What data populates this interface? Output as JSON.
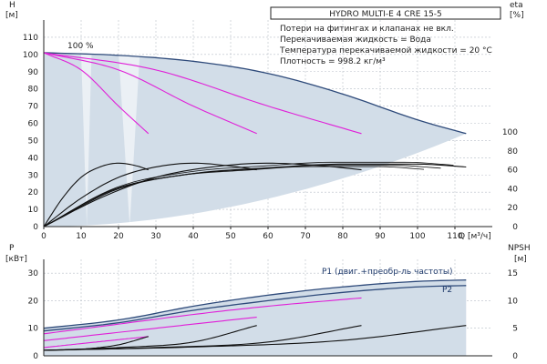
{
  "colors": {
    "envelope": "#d2dde8",
    "frame": "#1f3a6b",
    "outline": "#2e4a7a",
    "magenta": "#e020d8",
    "black": "#111111",
    "grid": "#b8bfc8"
  },
  "chart_data": [
    {
      "type": "line",
      "title": "HYDRO MULTI-E 4 CRE 15-5",
      "notes": [
        "Потери на фитингах и клапанах не вкл.",
        "Перекачиваемая жидкость = Вода",
        "Температура перекачиваемой жидкости = 20 °C",
        "Плотность = 998.2 кг/м³"
      ],
      "xlabel": "Q [м³/ч]",
      "ylabel_left": [
        "H",
        "[м]"
      ],
      "ylabel_right": [
        "eta",
        "[%]"
      ],
      "percent_label": "100 %",
      "xlim": [
        0,
        120
      ],
      "ylim_left": [
        0,
        120
      ],
      "ylim_right_eta": [
        0,
        100
      ],
      "xticks": [
        "0",
        "10",
        "20",
        "30",
        "40",
        "50",
        "60",
        "70",
        "80",
        "90",
        "100",
        "110"
      ],
      "yticks_left": [
        "0",
        "10",
        "20",
        "30",
        "40",
        "50",
        "60",
        "70",
        "80",
        "90",
        "100",
        "110"
      ],
      "yticks_right": [
        "0",
        "20",
        "40",
        "60",
        "80",
        "100"
      ],
      "series": [
        {
          "color": "navy",
          "role": "H-max",
          "x": [
            0,
            20,
            40,
            60,
            80,
            100,
            113
          ],
          "y": [
            101,
            99.5,
            96,
            89,
            77,
            62,
            54
          ]
        },
        {
          "color": "magenta",
          "role": "H-1-pump",
          "x": [
            0,
            10,
            20,
            28
          ],
          "y": [
            101,
            91,
            70,
            54
          ]
        },
        {
          "color": "magenta",
          "role": "H-2-pumps",
          "x": [
            0,
            20,
            40,
            57
          ],
          "y": [
            101,
            91,
            70,
            54
          ]
        },
        {
          "color": "magenta",
          "role": "H-3-pumps",
          "x": [
            0,
            30,
            60,
            85
          ],
          "y": [
            101,
            91,
            70,
            54
          ]
        },
        {
          "color": "black",
          "role": "eta-1-pump",
          "x": [
            0,
            5,
            10,
            15,
            20,
            25,
            28
          ],
          "y": [
            0,
            30,
            52,
            63,
            67,
            64,
            60
          ]
        },
        {
          "color": "black",
          "role": "eta-2-pumps",
          "x": [
            0,
            10,
            20,
            30,
            40,
            50,
            57
          ],
          "y": [
            0,
            30,
            52,
            63,
            67,
            64,
            60
          ]
        },
        {
          "color": "black",
          "role": "eta-3-pumps",
          "x": [
            0,
            15,
            30,
            45,
            60,
            75,
            85
          ],
          "y": [
            0,
            30,
            52,
            63,
            67,
            64,
            60
          ]
        },
        {
          "color": "black",
          "role": "eta-max",
          "x": [
            0,
            20,
            40,
            60,
            80,
            100,
            113
          ],
          "y": [
            0,
            40,
            56,
            62,
            66,
            66,
            63
          ]
        }
      ]
    },
    {
      "type": "line",
      "xlim": [
        0,
        120
      ],
      "ylabel_left": [
        "P",
        "[кВт]"
      ],
      "ylabel_right": [
        "NPSH",
        "[м]"
      ],
      "ylim_left": [
        0,
        35
      ],
      "ylim_right": [
        0,
        17.5
      ],
      "yticks_left": [
        "0",
        "10",
        "20",
        "30"
      ],
      "yticks_right": [
        "0",
        "5",
        "10",
        "15"
      ],
      "label_p1": "P1 (двиг.+преобр-ль частоты)",
      "label_p2": "P2",
      "series": [
        {
          "color": "navy",
          "role": "P1-max",
          "x": [
            0,
            20,
            40,
            60,
            80,
            100,
            113
          ],
          "y": [
            10,
            13,
            18,
            22,
            25,
            27,
            27.5
          ]
        },
        {
          "color": "navy",
          "role": "P2-max",
          "x": [
            0,
            20,
            40,
            60,
            80,
            100,
            113
          ],
          "y": [
            9,
            12,
            16.5,
            20,
            23,
            25,
            25.5
          ]
        },
        {
          "color": "magenta",
          "role": "P-3-pumps",
          "x": [
            0,
            20,
            40,
            60,
            85
          ],
          "y": [
            8,
            11.5,
            15,
            18,
            21
          ]
        },
        {
          "color": "magenta",
          "role": "P-2-pumps",
          "x": [
            0,
            20,
            40,
            57
          ],
          "y": [
            5.5,
            8.5,
            11.5,
            14
          ]
        },
        {
          "color": "magenta",
          "role": "P-1-pump",
          "x": [
            0,
            14,
            28
          ],
          "y": [
            3,
            5,
            7
          ]
        },
        {
          "color": "black",
          "role": "NPSH-1-pump",
          "x": [
            0,
            10,
            20,
            28
          ],
          "y": [
            1,
            1.2,
            2,
            3.5
          ]
        },
        {
          "color": "black",
          "role": "NPSH-2-pumps",
          "x": [
            0,
            20,
            40,
            57
          ],
          "y": [
            1,
            1.5,
            2.5,
            5.5
          ]
        },
        {
          "color": "black",
          "role": "NPSH-3-pumps",
          "x": [
            0,
            30,
            60,
            85
          ],
          "y": [
            1,
            1.5,
            2.5,
            5.5
          ]
        },
        {
          "color": "black",
          "role": "NPSH-max",
          "x": [
            0,
            40,
            80,
            113
          ],
          "y": [
            1,
            1.6,
            2.8,
            5.5
          ]
        }
      ]
    }
  ]
}
